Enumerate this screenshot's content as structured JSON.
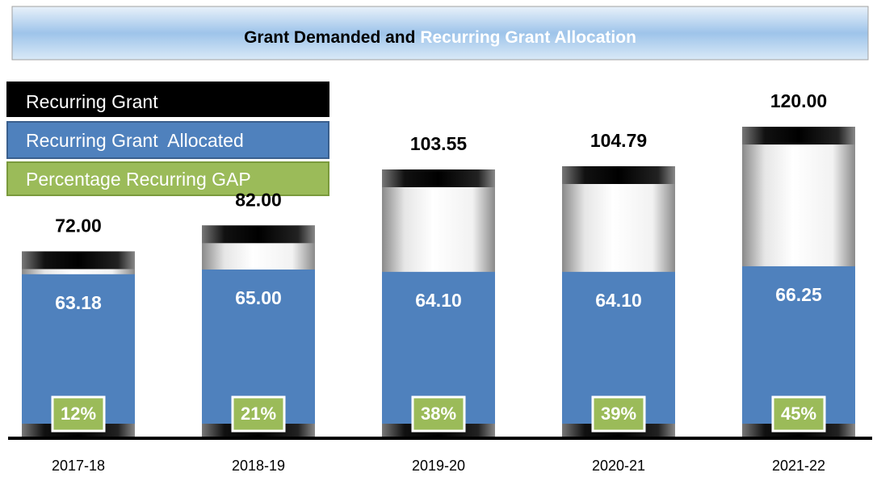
{
  "chart_data": {
    "type": "bar",
    "title": "Grant Demanded and",
    "title_highlight": "Recurring Grant Allocation",
    "categories": [
      "2017-18",
      "2018-19",
      "2019-20",
      "2020-21",
      "2021-22"
    ],
    "ylim": [
      0,
      125
    ],
    "series": [
      {
        "name": "Recurring Grant",
        "color": "#000000",
        "values": [
          72,
          82,
          103.55,
          104.79,
          120
        ],
        "value_labels": [
          "72.00",
          "82.00",
          "103.55",
          "104.79",
          "120.00"
        ]
      },
      {
        "name": "Recurring Grant  Allocated",
        "color": "#4f81bd",
        "values": [
          63.18,
          65,
          64.1,
          64.1,
          66.25
        ],
        "value_labels": [
          "63.18",
          "65.00",
          "64.10",
          "64.10",
          "66.25"
        ]
      },
      {
        "name": "Percentage Recurring GAP",
        "color": "#9bbb59",
        "values": [
          12,
          21,
          38,
          39,
          45
        ],
        "value_labels": [
          "12%",
          "21%",
          "38%",
          "39%",
          "45%"
        ]
      }
    ]
  }
}
